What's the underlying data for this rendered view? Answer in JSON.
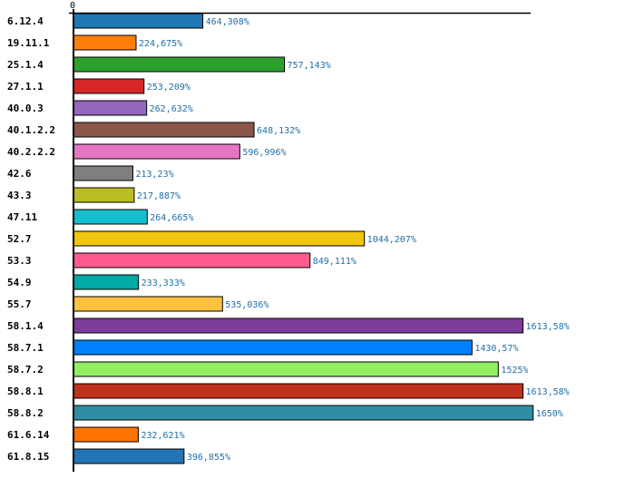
{
  "chart_data": {
    "type": "bar",
    "orientation": "horizontal",
    "title": "",
    "xlabel": "",
    "ylabel": "",
    "xlim": [
      0,
      1690
    ],
    "grid": false,
    "legend": "none",
    "x_ticks": [
      "0"
    ],
    "categories": [
      "6.12.4",
      "19.11.1",
      "25.1.4",
      "27.1.1",
      "40.0.3",
      "40.1.2.2",
      "40.2.2.2",
      "42.6",
      "43.3",
      "47.11",
      "52.7",
      "53.3",
      "54.9",
      "55.7",
      "58.1.4",
      "58.7.1",
      "58.7.2",
      "58.8.1",
      "58.8.2",
      "61.6.14",
      "61.8.15"
    ],
    "values": [
      464.308,
      224.675,
      757.143,
      253.209,
      262.632,
      648.132,
      596.996,
      213.23,
      217.887,
      264.665,
      1044.207,
      849.111,
      233.333,
      535.036,
      1613.58,
      1430.57,
      1525,
      1613.58,
      1650,
      232.621,
      396.855
    ],
    "value_labels": [
      "464,308%",
      "224,675%",
      "757,143%",
      "253,209%",
      "262,632%",
      "648,132%",
      "596,996%",
      "213,23%",
      "217,887%",
      "264,665%",
      "1044,207%",
      "849,111%",
      "233,333%",
      "535,036%",
      "1613,58%",
      "1430,57%",
      "1525%",
      "1613,58%",
      "1650%",
      "232,621%",
      "396,855%"
    ],
    "colors": [
      "#1f77b4",
      "#ff7f0e",
      "#2ca02c",
      "#d62728",
      "#9467bd",
      "#8c564b",
      "#e377c2",
      "#7f7f7f",
      "#bcbd22",
      "#17becf",
      "#f1c40f",
      "#ff5c8d",
      "#00a9a5",
      "#fdc13f",
      "#7d3c98",
      "#0080ff",
      "#90ee60",
      "#c0311c",
      "#2e8fa3",
      "#ff7300",
      "#2274b5"
    ],
    "value_label_color": "#1f6fa8"
  }
}
